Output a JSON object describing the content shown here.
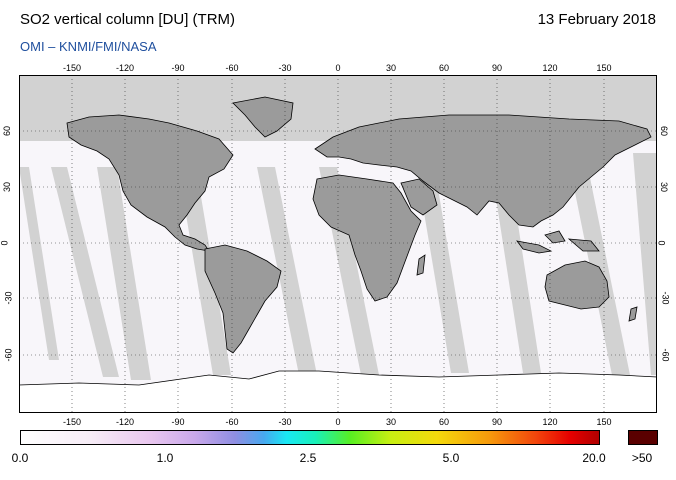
{
  "header": {
    "title": "SO2 vertical column [DU] (TRM)",
    "date": "13 February 2018",
    "credit": "OMI  –  KNMI/FMI/NASA"
  },
  "map": {
    "projection": "equirectangular",
    "lon_ticks": [
      "-150",
      "-120",
      "-90",
      "-60",
      "-30",
      "0",
      "30",
      "60",
      "90",
      "120",
      "150"
    ],
    "lat_ticks": [
      "60",
      "30",
      "0",
      "-30",
      "-60"
    ],
    "colors": {
      "land": "#9b9b9b",
      "no_data": "#d2d2d2",
      "measured_background": "#f8f6fa",
      "grid": "#333333",
      "coast": "#000000"
    }
  },
  "colorbar": {
    "labels": [
      "0.0",
      "1.0",
      "2.5",
      "5.0",
      "20.0"
    ],
    "overflow_label": ">50",
    "overflow_color": "#5a0000"
  }
}
